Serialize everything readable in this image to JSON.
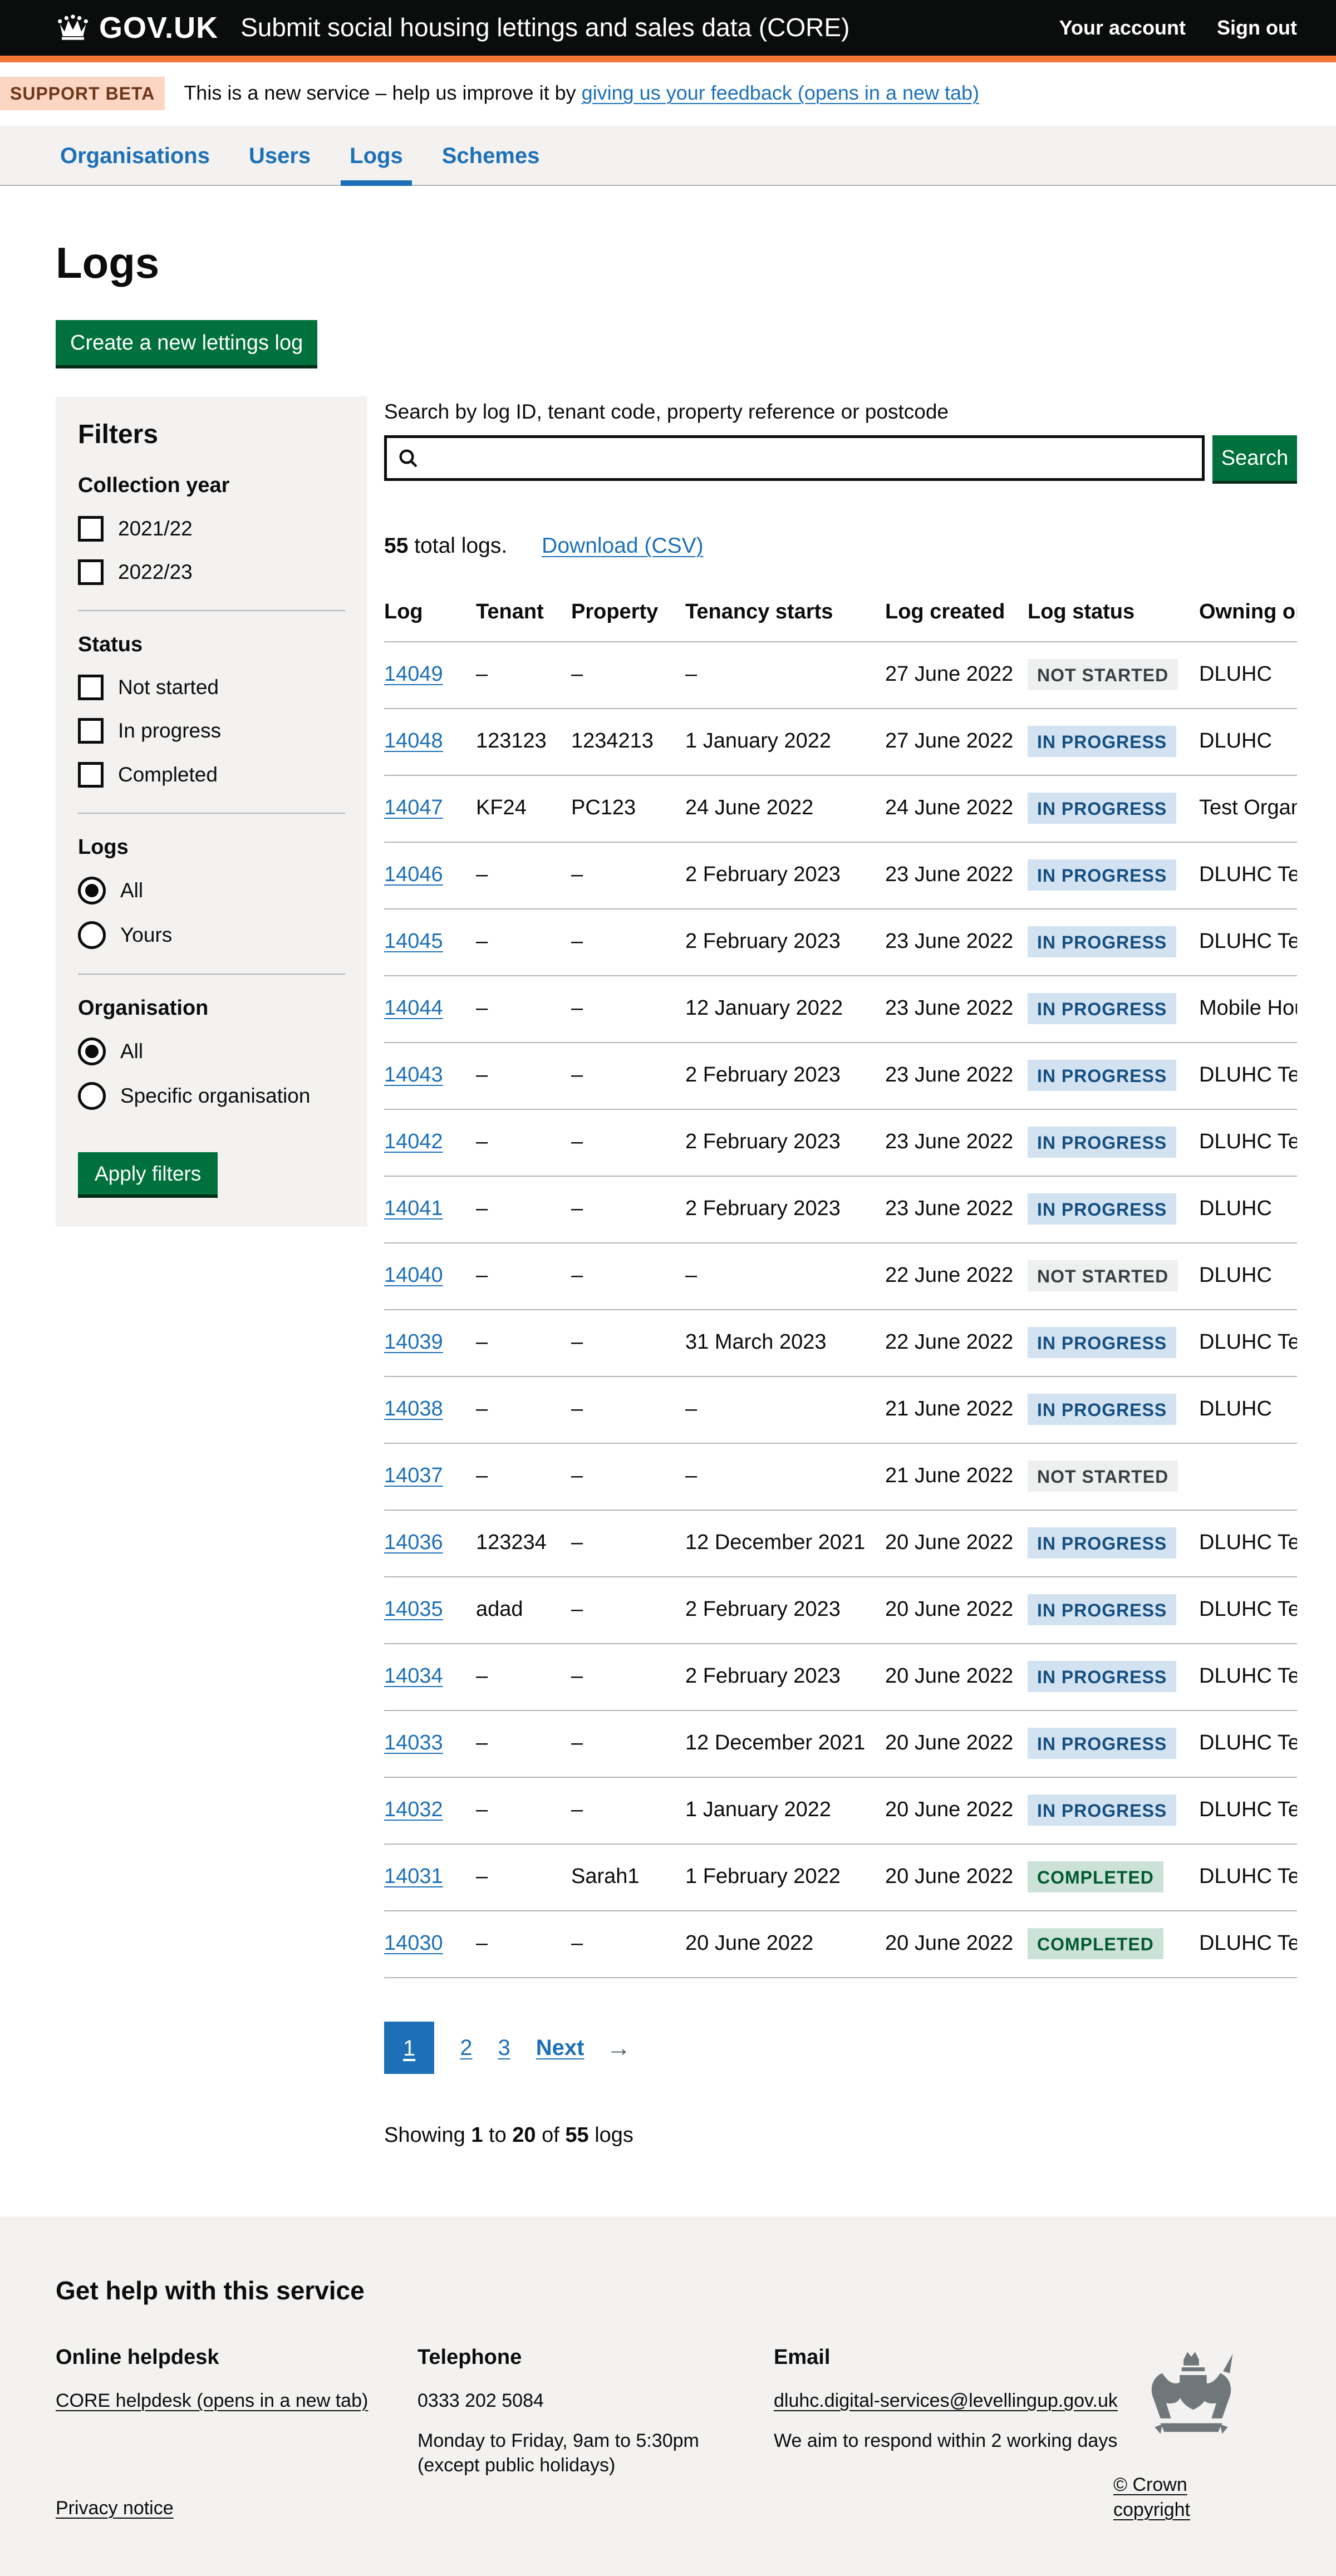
{
  "colors": {
    "header_bg": "#0b0c0c",
    "header_border_orange": "#f47738",
    "link_blue": "#1d70b8",
    "button_green": "#00703c",
    "panel_grey": "#f3f2f1",
    "border_grey": "#b1b4b6",
    "tag_grey_bg": "#eeefef",
    "tag_grey_text": "#383f43",
    "tag_blue_bg": "#d2e2f1",
    "tag_blue_text": "#144e81",
    "tag_green_bg": "#cce2d8",
    "tag_green_text": "#005a30"
  },
  "header": {
    "govuk": "GOV.UK",
    "service_name": "Submit social housing lettings and sales data (CORE)",
    "links": [
      "Your account",
      "Sign out"
    ]
  },
  "phase_banner": {
    "tag": "SUPPORT BETA",
    "text_before": "This is a new service – help us improve it by ",
    "link": "giving us your feedback (opens in a new tab)"
  },
  "nav": {
    "items": [
      {
        "label": "Organisations",
        "active": false
      },
      {
        "label": "Users",
        "active": false
      },
      {
        "label": "Logs",
        "active": true
      },
      {
        "label": "Schemes",
        "active": false
      }
    ]
  },
  "page": {
    "title": "Logs",
    "create_button": "Create a new lettings log"
  },
  "filters": {
    "heading": "Filters",
    "sections": [
      {
        "label": "Collection year",
        "type": "checkbox",
        "options": [
          {
            "label": "2021/22",
            "checked": false
          },
          {
            "label": "2022/23",
            "checked": false
          }
        ]
      },
      {
        "label": "Status",
        "type": "checkbox",
        "options": [
          {
            "label": "Not started",
            "checked": false
          },
          {
            "label": "In progress",
            "checked": false
          },
          {
            "label": "Completed",
            "checked": false
          }
        ]
      },
      {
        "label": "Logs",
        "type": "radio",
        "options": [
          {
            "label": "All",
            "checked": true
          },
          {
            "label": "Yours",
            "checked": false
          }
        ]
      },
      {
        "label": "Organisation",
        "type": "radio",
        "options": [
          {
            "label": "All",
            "checked": true
          },
          {
            "label": "Specific organisation",
            "checked": false
          }
        ]
      }
    ],
    "apply_button": "Apply filters"
  },
  "search": {
    "label": "Search by log ID, tenant code, property reference or postcode",
    "value": "",
    "button": "Search"
  },
  "results": {
    "total_bold": "55",
    "total_rest": " total logs.",
    "download_link": "Download (CSV)",
    "table": {
      "columns": [
        "Log",
        "Tenant",
        "Property",
        "Tenancy starts",
        "Log created",
        "Log status",
        "Owning organisation"
      ],
      "rows": [
        {
          "log": "14049",
          "tenant": "–",
          "property": "–",
          "tenancy_starts": "–",
          "log_created": "27 June 2022",
          "status": "NOT STARTED",
          "status_type": "grey",
          "owning": "DLUHC"
        },
        {
          "log": "14048",
          "tenant": "123123",
          "property": "1234213",
          "tenancy_starts": "1 January 2022",
          "log_created": "27 June 2022",
          "status": "IN PROGRESS",
          "status_type": "blue",
          "owning": "DLUHC"
        },
        {
          "log": "14047",
          "tenant": "KF24",
          "property": "PC123",
          "tenancy_starts": "24 June 2022",
          "log_created": "24 June 2022",
          "status": "IN PROGRESS",
          "status_type": "blue",
          "owning": "Test Organisa"
        },
        {
          "log": "14046",
          "tenant": "–",
          "property": "–",
          "tenancy_starts": "2 February 2023",
          "log_created": "23 June 2022",
          "status": "IN PROGRESS",
          "status_type": "blue",
          "owning": "DLUHC Test"
        },
        {
          "log": "14045",
          "tenant": "–",
          "property": "–",
          "tenancy_starts": "2 February 2023",
          "log_created": "23 June 2022",
          "status": "IN PROGRESS",
          "status_type": "blue",
          "owning": "DLUHC Test"
        },
        {
          "log": "14044",
          "tenant": "–",
          "property": "–",
          "tenancy_starts": "12 January 2022",
          "log_created": "23 June 2022",
          "status": "IN PROGRESS",
          "status_type": "blue",
          "owning": "Mobile Hous"
        },
        {
          "log": "14043",
          "tenant": "–",
          "property": "–",
          "tenancy_starts": "2 February 2023",
          "log_created": "23 June 2022",
          "status": "IN PROGRESS",
          "status_type": "blue",
          "owning": "DLUHC Test"
        },
        {
          "log": "14042",
          "tenant": "–",
          "property": "–",
          "tenancy_starts": "2 February 2023",
          "log_created": "23 June 2022",
          "status": "IN PROGRESS",
          "status_type": "blue",
          "owning": "DLUHC Test"
        },
        {
          "log": "14041",
          "tenant": "–",
          "property": "–",
          "tenancy_starts": "2 February 2023",
          "log_created": "23 June 2022",
          "status": "IN PROGRESS",
          "status_type": "blue",
          "owning": "DLUHC"
        },
        {
          "log": "14040",
          "tenant": "–",
          "property": "–",
          "tenancy_starts": "–",
          "log_created": "22 June 2022",
          "status": "NOT STARTED",
          "status_type": "grey",
          "owning": "DLUHC"
        },
        {
          "log": "14039",
          "tenant": "–",
          "property": "–",
          "tenancy_starts": "31 March 2023",
          "log_created": "22 June 2022",
          "status": "IN PROGRESS",
          "status_type": "blue",
          "owning": "DLUHC Test"
        },
        {
          "log": "14038",
          "tenant": "–",
          "property": "–",
          "tenancy_starts": "–",
          "log_created": "21 June 2022",
          "status": "IN PROGRESS",
          "status_type": "blue",
          "owning": "DLUHC"
        },
        {
          "log": "14037",
          "tenant": "–",
          "property": "–",
          "tenancy_starts": "–",
          "log_created": "21 June 2022",
          "status": "NOT STARTED",
          "status_type": "grey",
          "owning": ""
        },
        {
          "log": "14036",
          "tenant": "123234",
          "property": "–",
          "tenancy_starts": "12 December 2021",
          "log_created": "20 June 2022",
          "status": "IN PROGRESS",
          "status_type": "blue",
          "owning": "DLUHC Test"
        },
        {
          "log": "14035",
          "tenant": "adad",
          "property": "–",
          "tenancy_starts": "2 February 2023",
          "log_created": "20 June 2022",
          "status": "IN PROGRESS",
          "status_type": "blue",
          "owning": "DLUHC Test"
        },
        {
          "log": "14034",
          "tenant": "–",
          "property": "–",
          "tenancy_starts": "2 February 2023",
          "log_created": "20 June 2022",
          "status": "IN PROGRESS",
          "status_type": "blue",
          "owning": "DLUHC Test"
        },
        {
          "log": "14033",
          "tenant": "–",
          "property": "–",
          "tenancy_starts": "12 December 2021",
          "log_created": "20 June 2022",
          "status": "IN PROGRESS",
          "status_type": "blue",
          "owning": "DLUHC Test"
        },
        {
          "log": "14032",
          "tenant": "–",
          "property": "–",
          "tenancy_starts": "1 January 2022",
          "log_created": "20 June 2022",
          "status": "IN PROGRESS",
          "status_type": "blue",
          "owning": "DLUHC Test"
        },
        {
          "log": "14031",
          "tenant": "–",
          "property": "Sarah1",
          "tenancy_starts": "1 February 2022",
          "log_created": "20 June 2022",
          "status": "COMPLETED",
          "status_type": "green",
          "owning": "DLUHC Test"
        },
        {
          "log": "14030",
          "tenant": "–",
          "property": "–",
          "tenancy_starts": "20 June 2022",
          "log_created": "20 June 2022",
          "status": "COMPLETED",
          "status_type": "green",
          "owning": "DLUHC Test"
        }
      ]
    },
    "pagination": {
      "current": "1",
      "pages": [
        "2",
        "3"
      ],
      "next": "Next",
      "next_arrow": "→"
    },
    "showing": {
      "p0": "Showing ",
      "p1": "1",
      "p2": " to ",
      "p3": "20",
      "p4": " of ",
      "p5": "55",
      "p6": " logs"
    }
  },
  "footer": {
    "heading": "Get help with this service",
    "helpdesk": {
      "title": "Online helpdesk",
      "link": "CORE helpdesk (opens in a new tab)"
    },
    "telephone": {
      "title": "Telephone",
      "number": "0333 202 5084",
      "line1": "Monday to Friday, 9am to 5:30pm",
      "line2": "(except public holidays)"
    },
    "email": {
      "title": "Email",
      "link": "dluhc.digital-services@levellingup.gov.uk",
      "note": "We aim to respond within 2 working days"
    },
    "privacy_link": "Privacy notice",
    "copyright_link": "© Crown copyright"
  }
}
